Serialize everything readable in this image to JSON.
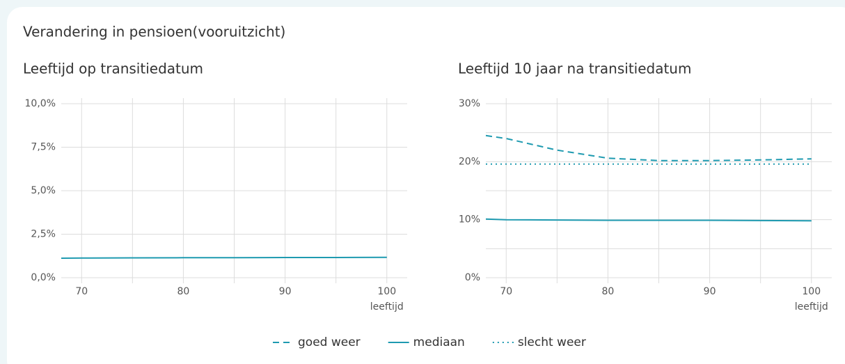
{
  "title": "Verandering in pensioen(vooruitzicht)",
  "chart_data": [
    {
      "type": "line",
      "title": "Leeftijd op transitiedatum",
      "xlabel": "leeftijd",
      "x": [
        68,
        70,
        75,
        80,
        85,
        90,
        95,
        100
      ],
      "xlim": [
        68,
        102
      ],
      "xticks": [
        70,
        80,
        90,
        100
      ],
      "x_minor_ticks": [
        75,
        85,
        95
      ],
      "ylim": [
        0,
        10
      ],
      "yticks": [
        {
          "value": 0,
          "label": "0,0%"
        },
        {
          "value": 2.5,
          "label": "2,5%"
        },
        {
          "value": 5,
          "label": "5,0%"
        },
        {
          "value": 7.5,
          "label": "7,5%"
        },
        {
          "value": 10,
          "label": "10,0%"
        }
      ],
      "grid": true,
      "series": [
        {
          "name": "mediaan",
          "color": "#1e9ab0",
          "dash": "solid",
          "values": [
            1.12,
            1.13,
            1.14,
            1.15,
            1.15,
            1.16,
            1.16,
            1.17
          ]
        }
      ]
    },
    {
      "type": "line",
      "title": "Leeftijd 10 jaar na transitiedatum",
      "xlabel": "leeftijd",
      "x": [
        68,
        70,
        75,
        80,
        85,
        90,
        95,
        100
      ],
      "xlim": [
        68,
        102
      ],
      "xticks": [
        70,
        80,
        90,
        100
      ],
      "x_minor_ticks": [
        75,
        85,
        95
      ],
      "ylim": [
        0,
        30
      ],
      "yticks": [
        {
          "value": 0,
          "label": "0%"
        },
        {
          "value": 10,
          "label": "10%"
        },
        {
          "value": 20,
          "label": "20%"
        },
        {
          "value": 30,
          "label": "30%"
        }
      ],
      "y_minor_ticks": [
        5,
        15,
        25
      ],
      "grid": true,
      "series": [
        {
          "name": "goed weer",
          "color": "#1e9ab0",
          "dash": "dashed",
          "values": [
            24.5,
            24.0,
            22.0,
            20.6,
            20.2,
            20.2,
            20.3,
            20.5
          ]
        },
        {
          "name": "mediaan",
          "color": "#1e9ab0",
          "dash": "solid",
          "values": [
            10.1,
            10.0,
            9.95,
            9.9,
            9.9,
            9.9,
            9.85,
            9.8
          ]
        },
        {
          "name": "slecht weer",
          "color": "#1e9ab0",
          "dash": "dotted",
          "values": [
            19.6,
            19.6,
            19.6,
            19.6,
            19.6,
            19.6,
            19.6,
            19.6
          ]
        }
      ]
    }
  ]
}
